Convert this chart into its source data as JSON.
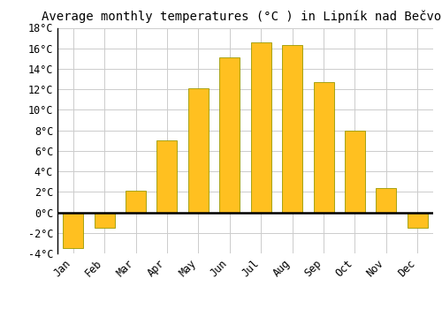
{
  "title": "Average monthly temperatures (°C ) in Lipník nad Bečvou",
  "months": [
    "Jan",
    "Feb",
    "Mar",
    "Apr",
    "May",
    "Jun",
    "Jul",
    "Aug",
    "Sep",
    "Oct",
    "Nov",
    "Dec"
  ],
  "values": [
    -3.5,
    -1.5,
    2.1,
    7.0,
    12.1,
    15.1,
    16.6,
    16.3,
    12.7,
    8.0,
    2.4,
    -1.5
  ],
  "bar_color": "#FFC020",
  "bar_edge_color": "#999900",
  "background_color": "#FFFFFF",
  "grid_color": "#CCCCCC",
  "ylim": [
    -4,
    18
  ],
  "yticks": [
    -4,
    -2,
    0,
    2,
    4,
    6,
    8,
    10,
    12,
    14,
    16,
    18
  ],
  "zero_line_color": "#000000",
  "title_fontsize": 10,
  "tick_fontsize": 8.5,
  "font_family": "monospace"
}
